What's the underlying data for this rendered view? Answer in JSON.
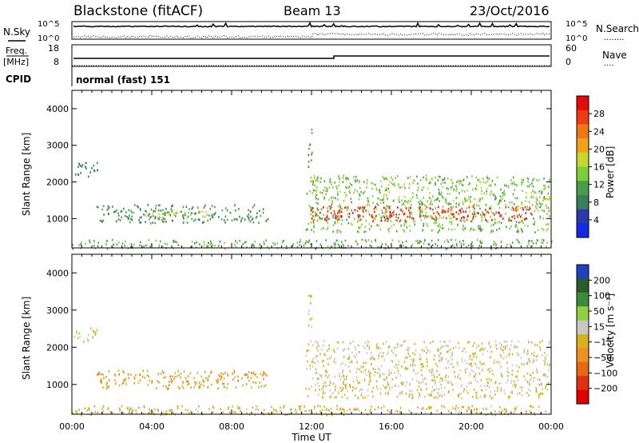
{
  "header": {
    "title": "Blackstone (fitACF)",
    "beam": "Beam 13",
    "date": "23/Oct/2016"
  },
  "side_labels": {
    "nsky": "N.Sky",
    "nsearch": "N.Search",
    "nsearch_dots": "........",
    "freq_line1": "Freq.",
    "freq_line2": "[MHz]",
    "nave": "Nave",
    "nave_dots": "....",
    "cpid": "CPID",
    "cpid_value": "normal (fast) 151"
  },
  "noise_panel": {
    "left_ticks": [
      "10^5",
      "10^0"
    ],
    "right_ticks": [
      "10^5",
      "10^0"
    ]
  },
  "freq_panel": {
    "left_ticks": [
      "18",
      "8"
    ],
    "right_ticks": [
      "60",
      "0"
    ]
  },
  "colors": {
    "power_scale": [
      "#1428e6",
      "#2a3aa8",
      "#3b7d59",
      "#4a9e4a",
      "#7fcd3f",
      "#c8d630",
      "#f0a21a",
      "#f07814",
      "#ee3c14",
      "#e60a0a"
    ],
    "velocity_scale": [
      "#2040c0",
      "#2a5c2a",
      "#3a8c3a",
      "#8fd040",
      "#c8c8c0",
      "#d8b020",
      "#f09020",
      "#e86818",
      "#e03010",
      "#e00000"
    ]
  },
  "chart_data": [
    {
      "type": "heatmap",
      "panel": "power",
      "xlabel": "",
      "ylabel": "Slant Range [km]",
      "ylim": [
        200,
        4500
      ],
      "xlim": [
        "00:00",
        "24:00"
      ],
      "y_ticks": [
        "1000",
        "2000",
        "3000",
        "4000"
      ],
      "colorbar": {
        "label": "Power [dB]",
        "ticks": [
          "4",
          "8",
          "12",
          "16",
          "20",
          "24",
          "28"
        ],
        "range": [
          0,
          32
        ]
      },
      "scatter_regions": [
        {
          "from_h": 0.0,
          "to_h": 24.0,
          "range_km": [
            200,
            450
          ],
          "value": 12
        },
        {
          "from_h": 0.1,
          "to_h": 1.3,
          "range_km": [
            2150,
            2550
          ],
          "value": 8
        },
        {
          "from_h": 1.2,
          "to_h": 9.8,
          "range_km": [
            900,
            1400
          ],
          "value": 10
        },
        {
          "from_h": 4.0,
          "to_h": 7.0,
          "range_km": [
            1050,
            1250
          ],
          "value": 16
        },
        {
          "from_h": 11.7,
          "to_h": 23.9,
          "range_km": [
            650,
            2200
          ],
          "value": 14
        },
        {
          "from_h": 11.9,
          "to_h": 23.0,
          "range_km": [
            950,
            1350
          ],
          "value": 28
        },
        {
          "from_h": 11.8,
          "to_h": 12.0,
          "range_km": [
            2300,
            3500
          ],
          "value": 10
        }
      ]
    },
    {
      "type": "heatmap",
      "panel": "velocity",
      "xlabel": "Time UT",
      "ylabel": "Slant Range [km]",
      "ylim": [
        200,
        4500
      ],
      "x_ticks": [
        "00:00",
        "04:00",
        "08:00",
        "12:00",
        "16:00",
        "20:00",
        "00:00"
      ],
      "y_ticks": [
        "1000",
        "2000",
        "3000",
        "4000"
      ],
      "colorbar": {
        "label": "Velocity [m s⁻¹]",
        "ticks": [
          "200",
          "100",
          "50",
          "15",
          "−15",
          "−50",
          "−100",
          "−200"
        ],
        "range": [
          -250,
          250
        ]
      },
      "scatter_regions": [
        {
          "from_h": 0.0,
          "to_h": 24.0,
          "range_km": [
            200,
            450
          ],
          "value": -30
        },
        {
          "from_h": 0.1,
          "to_h": 1.3,
          "range_km": [
            2150,
            2550
          ],
          "value": 0
        },
        {
          "from_h": 1.2,
          "to_h": 9.8,
          "range_km": [
            900,
            1400
          ],
          "value": -60
        },
        {
          "from_h": 11.7,
          "to_h": 23.9,
          "range_km": [
            650,
            2200
          ],
          "value": 0
        },
        {
          "from_h": 11.8,
          "to_h": 12.0,
          "range_km": [
            2300,
            3500
          ],
          "value": -20
        }
      ]
    }
  ]
}
